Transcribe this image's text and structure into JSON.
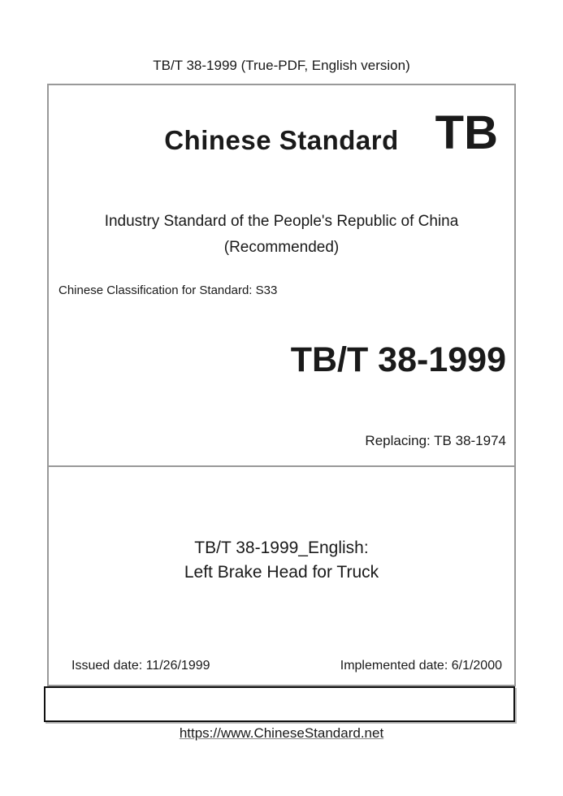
{
  "page": {
    "header": "TB/T 38-1999 (True-PDF, English version)",
    "footer_link": "https://www.ChineseStandard.net"
  },
  "cover": {
    "brand_title": "Chinese Standard",
    "brand_code": "TB",
    "org_line1": "Industry Standard of the People's Republic of China",
    "org_line2": "(Recommended)",
    "classification": "Chinese Classification for Standard: S33",
    "standard_number": "TB/T 38-1999",
    "replacing": "Replacing: TB 38-1974",
    "english_title_line1": "TB/T 38-1999_English:",
    "english_title_line2": "Left Brake Head for Truck",
    "issued_date": "Issued date: 11/26/1999",
    "implemented_date": "Implemented date: 6/1/2000"
  },
  "colors": {
    "border_gray": "#999999",
    "border_black": "#111111",
    "text": "#1a1a1a"
  }
}
